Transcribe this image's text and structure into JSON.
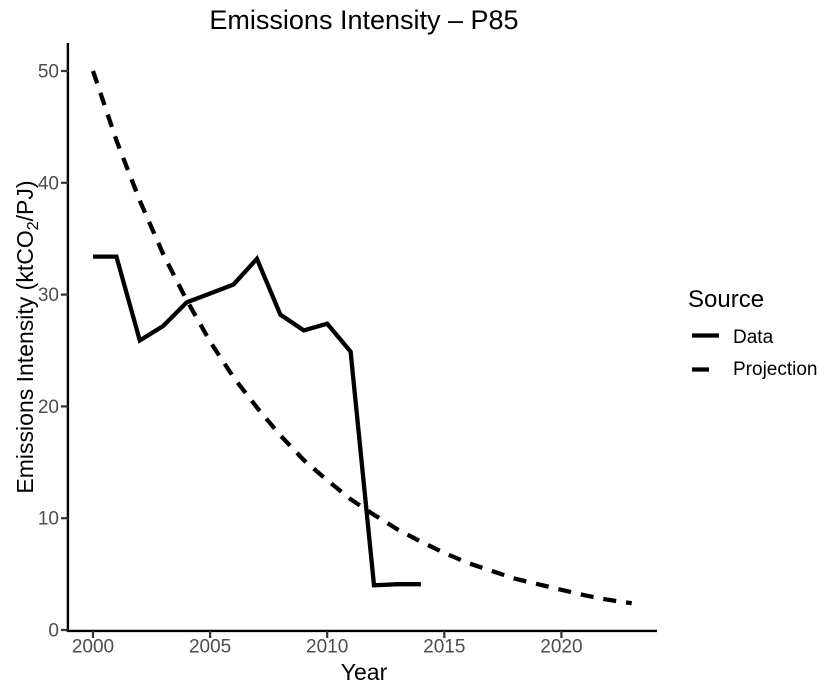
{
  "figure": {
    "background": "#FFFFFF"
  },
  "chart_data": {
    "type": "line",
    "title": "Emissions Intensity – P85",
    "xlabel": "Year",
    "ylabel": "Emissions Intensity (ktCO2/PJ)",
    "ylabel_parts": [
      "Emissions Intensity (ktCO",
      "2",
      "/PJ)"
    ],
    "x_ticks": [
      2000,
      2005,
      2010,
      2015,
      2020
    ],
    "y_ticks": [
      0,
      10,
      20,
      30,
      40,
      50
    ],
    "xlim": [
      1998.9,
      2024.1
    ],
    "ylim": [
      0,
      52.5
    ],
    "grid": false,
    "legend": {
      "title": "Source",
      "position": "right",
      "entries": [
        {
          "label": "Data",
          "linetype": "solid"
        },
        {
          "label": "Projection",
          "linetype": "dashed"
        }
      ]
    },
    "colors": {
      "line": "#000000",
      "axis": "#000000",
      "tick_label": "#4D4D4D"
    },
    "series": [
      {
        "name": "Data",
        "linetype": "solid",
        "x": [
          2000,
          2001,
          2002,
          2003,
          2004,
          2005,
          2006,
          2007,
          2008,
          2009,
          2010,
          2011,
          2012,
          2013,
          2014
        ],
        "y": [
          33.4,
          33.4,
          25.9,
          27.2,
          29.3,
          30.1,
          30.9,
          33.2,
          28.2,
          26.8,
          27.4,
          24.9,
          4.0,
          4.1,
          4.1
        ]
      },
      {
        "name": "Projection",
        "linetype": "dashed",
        "x": [
          2000,
          2001,
          2002,
          2003,
          2004,
          2005,
          2006,
          2007,
          2008,
          2009,
          2010,
          2011,
          2012,
          2013,
          2014,
          2015,
          2016,
          2017,
          2018,
          2019,
          2020,
          2021,
          2022,
          2023
        ],
        "y": [
          50.0,
          43.8,
          38.4,
          33.6,
          29.5,
          25.8,
          22.6,
          19.9,
          17.4,
          15.2,
          13.4,
          11.7,
          10.3,
          9.0,
          7.9,
          6.9,
          6.0,
          5.3,
          4.6,
          4.1,
          3.6,
          3.1,
          2.7,
          2.4
        ]
      }
    ]
  }
}
